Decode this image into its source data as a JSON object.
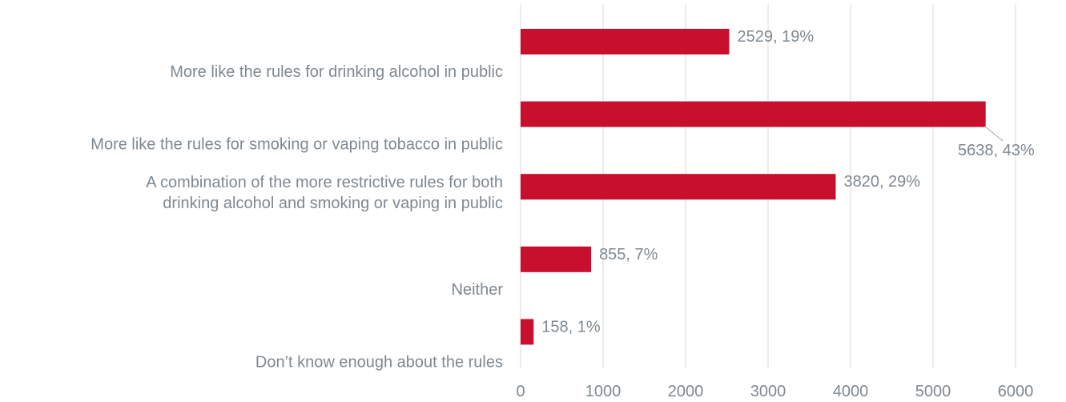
{
  "chart_data": {
    "type": "bar",
    "orientation": "horizontal",
    "categories": [
      [
        "More like the rules for drinking alcohol in public"
      ],
      [
        "More like the rules for smoking or vaping tobacco in public"
      ],
      [
        "A combination of the more restrictive rules for both",
        "drinking alcohol and smoking or vaping in public"
      ],
      [
        "Neither"
      ],
      [
        "Don’t know enough about the rules"
      ]
    ],
    "values": [
      2529,
      5638,
      3820,
      855,
      158
    ],
    "data_labels": [
      "2529, 19%",
      "5638, 43%",
      "3820, 29%",
      "855, 7%",
      "158, 1%"
    ],
    "xlim": [
      0,
      6000
    ],
    "x_ticks": [
      0,
      1000,
      2000,
      3000,
      4000,
      5000,
      6000
    ],
    "grid": true,
    "legend": "none",
    "title": "",
    "xlabel": "",
    "ylabel": "",
    "colors": {
      "bar": "#c8102e",
      "grid": "#d9d9d9",
      "text": "#7f8890",
      "leader": "#a6a6a6"
    }
  }
}
